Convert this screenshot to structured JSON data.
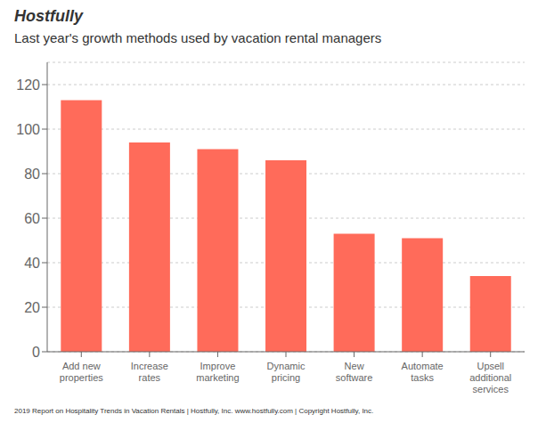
{
  "chart_data": {
    "type": "bar",
    "title": "Last year's growth methods used by vacation rental managers",
    "categories": [
      "Add new\nproperties",
      "Increase\nrates",
      "Improve\nmarketing",
      "Dynamic\npricing",
      "New\nsoftware",
      "Automate\ntasks",
      "Upsell\nadditional\nservices"
    ],
    "values": [
      113,
      94,
      91,
      86,
      53,
      51,
      34
    ],
    "color": "#FF6B5A",
    "ylim": [
      0,
      130
    ],
    "yticks": [
      0,
      20,
      40,
      60,
      80,
      100,
      120
    ],
    "grid": true,
    "annotations": [
      "Hostfully",
      "2019 Report on Hospitality Trends in Vacation Rentals | Hostfully, Inc. www.hostfully.com | Copyright Hostfully, Inc."
    ]
  }
}
